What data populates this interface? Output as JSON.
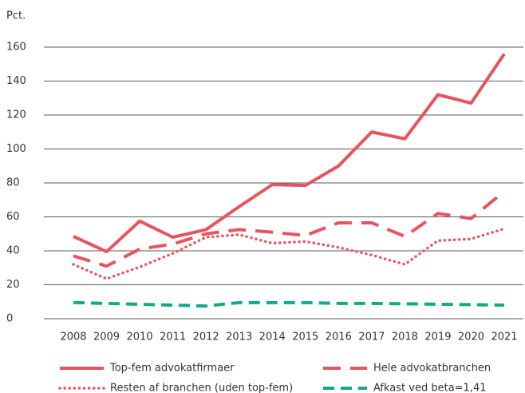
{
  "chart_data": {
    "type": "line",
    "y_axis_label": "Pct.",
    "categories": [
      "2008",
      "2009",
      "2010",
      "2011",
      "2012",
      "2013",
      "2014",
      "2015",
      "2016",
      "2017",
      "2018",
      "2019",
      "2020",
      "2021"
    ],
    "series": [
      {
        "name": "Top-fem advokatfirmaer",
        "color": "#e8545e",
        "style": "solid",
        "values": [
          48.5,
          39.5,
          57.5,
          48,
          52.5,
          66,
          79,
          78.5,
          90,
          110,
          106,
          132,
          127,
          156
        ]
      },
      {
        "name": "Hele advokatbranchen",
        "color": "#e8545e",
        "style": "dashed",
        "values": [
          37,
          31,
          41,
          44,
          50,
          52.5,
          51,
          49,
          56.5,
          56.5,
          48.5,
          62,
          59,
          75
        ]
      },
      {
        "name": "Resten af branchen (uden top-fem)",
        "color": "#e8545e",
        "style": "dotted",
        "values": [
          32,
          23.5,
          30.5,
          38.5,
          48,
          49.5,
          44.5,
          45.5,
          42,
          37.5,
          32,
          46,
          47,
          53
        ]
      },
      {
        "name": "Afkast ved beta=1,41",
        "color": "#13a88a",
        "style": "dashed",
        "values": [
          9.5,
          9,
          8.5,
          8,
          7.5,
          9.5,
          9.5,
          9.5,
          9,
          9,
          8.8,
          8.5,
          8.3,
          8
        ]
      }
    ],
    "ylim": [
      0,
      160
    ],
    "yticks": [
      0,
      20,
      40,
      60,
      80,
      100,
      120,
      140,
      160
    ],
    "grid": true
  }
}
